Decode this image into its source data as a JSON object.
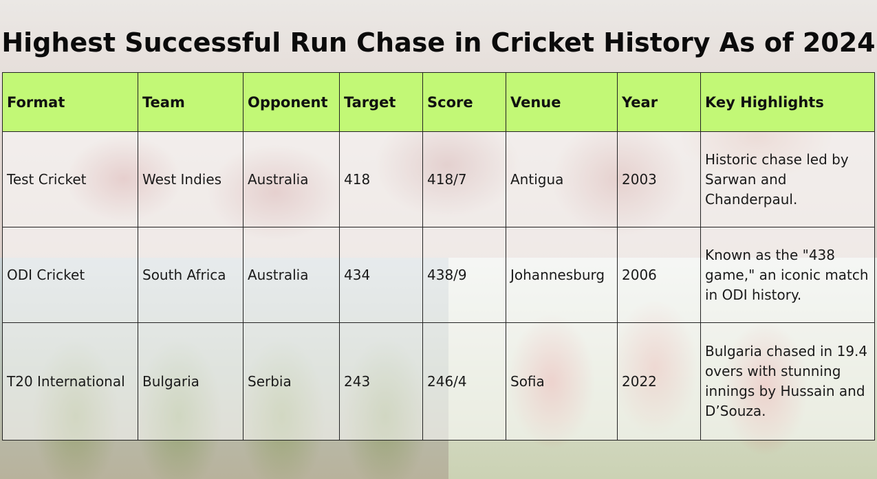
{
  "title": "Highest Successful Run Chase in Cricket History As of 2024",
  "table": {
    "headers": [
      "Format",
      "Team",
      "Opponent",
      "Target",
      "Score",
      "Venue",
      "Year",
      "Key Highlights"
    ],
    "rows": [
      [
        "Test Cricket",
        "West Indies",
        "Australia",
        "418",
        "418/7",
        "Antigua",
        "2003",
        "Historic chase led by Sarwan and Chanderpaul."
      ],
      [
        "ODI Cricket",
        "South Africa",
        "Australia",
        "434",
        "438/9",
        "Johannesburg",
        "2006",
        "Known as the \"438 game,\" an iconic match in ODI history."
      ],
      [
        "T20 International",
        "Bulgaria",
        "Serbia",
        "243",
        "246/4",
        "Sofia",
        "2022",
        "Bulgaria chased in 19.4 overs with stunning innings by Hussain and D’Souza."
      ]
    ]
  },
  "colors": {
    "header_bg": "#c2f876",
    "border": "#222222",
    "title": "#0b0b0b"
  }
}
